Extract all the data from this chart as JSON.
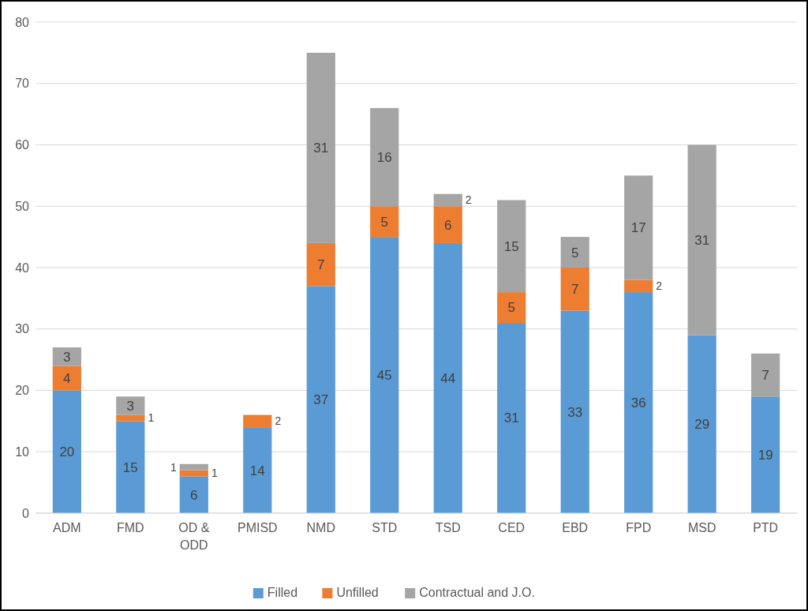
{
  "chart_data": {
    "type": "bar",
    "stacked": true,
    "categories": [
      "ADM",
      "FMD",
      "OD & ODD",
      "PMISD",
      "NMD",
      "STD",
      "TSD",
      "CED",
      "EBD",
      "FPD",
      "MSD",
      "PTD"
    ],
    "series": [
      {
        "name": "Filled",
        "color": "#5b9bd5",
        "values": [
          20,
          15,
          6,
          14,
          37,
          45,
          44,
          31,
          33,
          36,
          29,
          19
        ],
        "value_labels": [
          "20",
          "15",
          "6",
          "14",
          "37",
          "45",
          "44",
          "31",
          "33",
          "36",
          "29",
          "19"
        ]
      },
      {
        "name": "Unfilled",
        "color": "#ed7d31",
        "values": [
          4,
          1,
          1,
          2,
          7,
          5,
          6,
          5,
          7,
          2,
          0,
          0
        ],
        "value_labels": [
          "4",
          "1",
          "1",
          "2",
          "7",
          "5",
          "6",
          "5",
          "7",
          "2",
          null,
          null
        ]
      },
      {
        "name": "Contractual and J.O.",
        "color": "#a5a5a5",
        "values": [
          3,
          3,
          1,
          0,
          31,
          16,
          2,
          15,
          5,
          17,
          31,
          7
        ],
        "value_labels": [
          "3",
          "3",
          "1",
          null,
          "31",
          "16",
          "2",
          "15",
          "5",
          "17",
          "31",
          "7"
        ]
      }
    ],
    "ylim": [
      0,
      80
    ],
    "yticks": [
      0,
      10,
      20,
      30,
      40,
      50,
      60,
      70,
      80
    ],
    "grid": "y",
    "legend": "bottom"
  }
}
